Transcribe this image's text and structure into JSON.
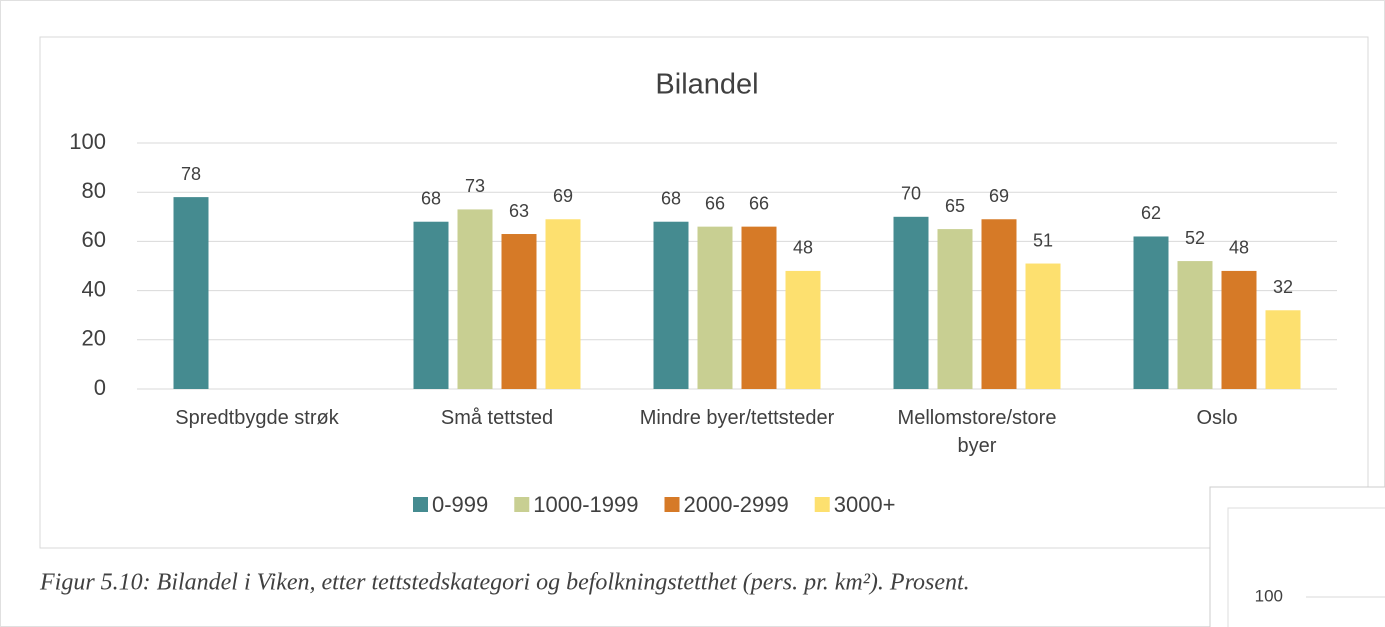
{
  "chart_data": {
    "type": "bar",
    "title": "Bilandel",
    "categories": [
      "Spredtbygde strøk",
      "Små tettsted",
      "Mindre byer/tettsteder",
      "Mellomstore/store byer",
      "Oslo"
    ],
    "series": [
      {
        "name": "0-999",
        "color": "#458b90",
        "values": [
          78,
          68,
          68,
          70,
          62
        ]
      },
      {
        "name": "1000-1999",
        "color": "#c8cf92",
        "values": [
          null,
          73,
          66,
          65,
          52
        ]
      },
      {
        "name": "2000-2999",
        "color": "#d67a27",
        "values": [
          null,
          63,
          66,
          69,
          48
        ]
      },
      {
        "name": "3000+",
        "color": "#fde06f",
        "values": [
          null,
          69,
          48,
          51,
          32
        ]
      }
    ],
    "ylim": [
      0,
      100
    ],
    "yticks": [
      0,
      20,
      40,
      60,
      80,
      100
    ],
    "grid": true,
    "legend": "bottom"
  },
  "caption": "Figur 5.10: Bilandel i Viken, etter tettstedskategori og befolkningstetthet (pers. pr. km²). Prosent.",
  "fragment": {
    "yticks": [
      100
    ]
  }
}
